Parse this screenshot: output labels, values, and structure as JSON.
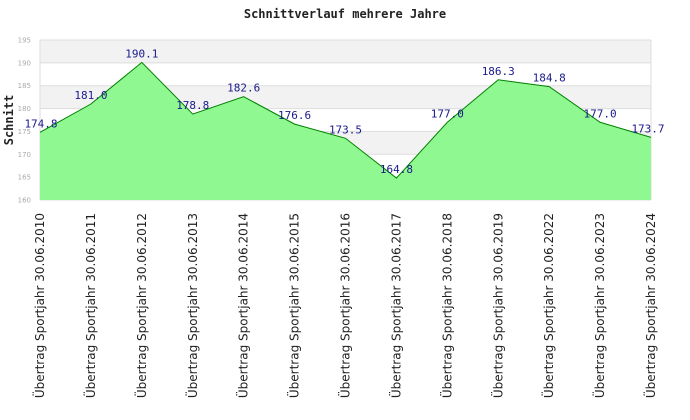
{
  "chart_data": {
    "type": "area",
    "title": "Schnittverlauf mehrere Jahre",
    "ylabel": "Schnitt",
    "xlabel": "",
    "ylim": [
      160,
      195
    ],
    "yticks": [
      160,
      165,
      170,
      175,
      180,
      185,
      190,
      195
    ],
    "grid": true,
    "legend": "none",
    "categories": [
      "Übertrag Sportjahr 30.06.2010",
      "Übertrag Sportjahr 30.06.2011",
      "Übertrag Sportjahr 30.06.2012",
      "Übertrag Sportjahr 30.06.2013",
      "Übertrag Sportjahr 30.06.2014",
      "Übertrag Sportjahr 30.06.2015",
      "Übertrag Sportjahr 30.06.2016",
      "Übertrag Sportjahr 30.06.2017",
      "Übertrag Sportjahr 30.06.2018",
      "Übertrag Sportjahr 30.06.2019",
      "Übertrag Sportjahr 30.06.2022",
      "Übertrag Sportjahr 30.06.2023",
      "Übertrag Sportjahr 30.06.2024"
    ],
    "values": [
      174.8,
      181.0,
      190.1,
      178.8,
      182.6,
      176.6,
      173.5,
      164.8,
      177.0,
      186.3,
      184.8,
      177.0,
      173.7
    ],
    "data_labels": [
      "174.8",
      "181.0",
      "190.1",
      "178.8",
      "182.6",
      "176.6",
      "173.5",
      "164.8",
      "177.0",
      "186.3",
      "184.8",
      "177.0",
      "173.7"
    ],
    "colors": {
      "fill": "#90f890",
      "line": "#008000",
      "label": "#1a1a8c",
      "band": "#f2f2f2",
      "grid": "#dddddd"
    }
  }
}
